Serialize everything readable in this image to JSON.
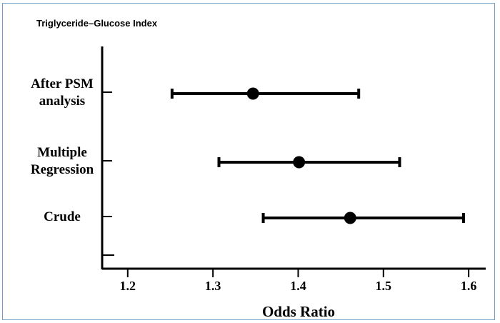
{
  "chart_data": {
    "type": "forest",
    "title": "Triglyceride–Glucose Index",
    "xlabel": "Odds Ratio",
    "ylabel": "",
    "xlim": [
      1.17,
      1.62
    ],
    "xticks": [
      "1.2",
      "1.3",
      "1.4",
      "1.5",
      "1.6"
    ],
    "grid": false,
    "categories": [
      {
        "lines": [
          "After PSM",
          "analysis"
        ],
        "or": 1.347,
        "lower": 1.252,
        "upper": 1.471
      },
      {
        "lines": [
          "Multiple",
          "Regression"
        ],
        "or": 1.401,
        "lower": 1.307,
        "upper": 1.519
      },
      {
        "lines": [
          "Crude"
        ],
        "or": 1.461,
        "lower": 1.359,
        "upper": 1.594
      }
    ]
  }
}
